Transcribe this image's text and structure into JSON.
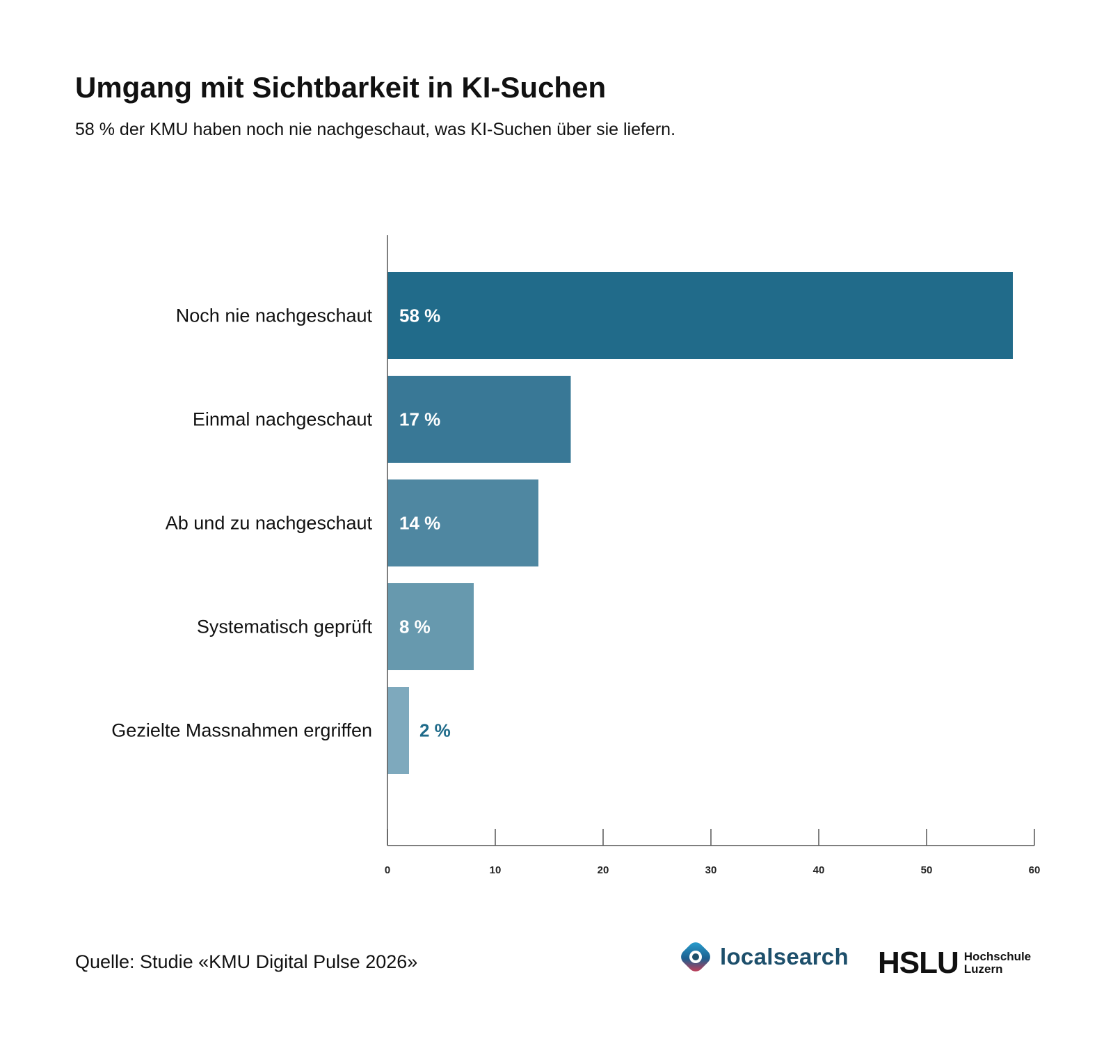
{
  "header": {
    "title": "Umgang mit Sichtbarkeit in KI-Suchen",
    "subtitle": "58 %  der KMU haben noch nie nachgeschaut, was KI-Suchen über sie liefern."
  },
  "chart_data": {
    "type": "bar",
    "orientation": "horizontal",
    "categories": [
      "Noch nie nachgeschaut",
      "Einmal nachgeschaut",
      "Ab und zu nachgeschaut",
      "Systematisch geprüft",
      "Gezielte Massnahmen ergriffen"
    ],
    "values": [
      58,
      17,
      14,
      8,
      2
    ],
    "data_labels": [
      "58 %",
      "17 %",
      "14 %",
      "8 %",
      "2 %"
    ],
    "colors": [
      "#216b8a",
      "#397896",
      "#4f87a1",
      "#6799ae",
      "#7ea9bd"
    ],
    "label_inside_color": "#ffffff",
    "label_outside_color": "#1f6b8a",
    "xlim": [
      0,
      60
    ],
    "xticks": [
      0,
      10,
      20,
      30,
      40,
      50,
      60
    ],
    "grid": false
  },
  "footer": {
    "source": "Quelle: Studie «KMU Digital Pulse 2026»",
    "logo_localsearch": {
      "text": "localsearch",
      "icon": "localsearch-logo-icon"
    },
    "logo_hslu": {
      "mark": "HSLU",
      "line1": "Hochschule",
      "line2": "Luzern"
    }
  }
}
